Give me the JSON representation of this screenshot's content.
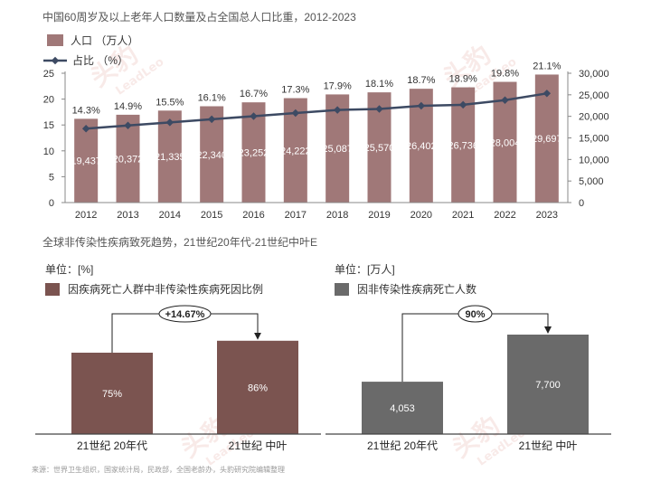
{
  "top_chart": {
    "title": "中国60周岁及以上老年人口数量及占全国总人口比重，2012-2023",
    "legend": {
      "bar_label": "人口 （万人）",
      "line_label": "占比 （%）"
    },
    "colors": {
      "bar": "#a07878",
      "line": "#3d4a63"
    }
  },
  "bottom_section": {
    "title": "全球非传染性疾病致死趋势，21世纪20年代-21世纪中叶E",
    "left": {
      "unit": "单位：[%]",
      "legend": "因疾病死亡人群中非传染性疾病死因比例",
      "growth_label": "+14.67%",
      "color": "#7b5450"
    },
    "right": {
      "unit": "单位：[万人]",
      "legend": "因非传染性疾病死亡人数",
      "growth_label": "90%",
      "color": "#6a6a6a"
    }
  },
  "source": "来源：世界卫生组织，国家统计局，民政部，全国老龄办，头豹研究院编辑整理",
  "watermark": {
    "brand": "头豹",
    "brand_en": "LeadLeo"
  },
  "chart_data": [
    {
      "type": "bar",
      "categories": [
        "2012",
        "2013",
        "2014",
        "2015",
        "2016",
        "2017",
        "2018",
        "2019",
        "2020",
        "2021",
        "2022",
        "2023"
      ],
      "series": [
        {
          "name": "人口 （万人）",
          "type": "bar",
          "axis": "right",
          "values": [
            19437,
            20372,
            21335,
            22340,
            23252,
            24222,
            25087,
            25570,
            26402,
            26736,
            28004,
            29697
          ],
          "labels": [
            "19,437",
            "20,372",
            "21,335",
            "22,340",
            "23,252",
            "24,222",
            "25,087",
            "25,570",
            "26,402",
            "26,736",
            "28,004",
            "29,697"
          ]
        },
        {
          "name": "占比 （%）",
          "type": "line",
          "axis": "left",
          "values": [
            14.3,
            14.9,
            15.5,
            16.1,
            16.7,
            17.3,
            17.9,
            18.1,
            18.7,
            18.9,
            19.8,
            21.1
          ],
          "labels": [
            "14.3%",
            "14.9%",
            "15.5%",
            "16.1%",
            "16.7%",
            "17.3%",
            "17.9%",
            "18.1%",
            "18.7%",
            "18.9%",
            "19.8%",
            "21.1%"
          ]
        }
      ],
      "y_left": {
        "ylim": [
          0,
          25
        ],
        "ticks": [
          "0",
          "5",
          "10",
          "15",
          "20",
          "25"
        ]
      },
      "y_right": {
        "ylim": [
          0,
          30000
        ],
        "ticks": [
          "0",
          "5,000",
          "10,000",
          "15,000",
          "20,000",
          "25,000",
          "30,000"
        ]
      }
    },
    {
      "type": "bar",
      "categories": [
        "21世纪 20年代",
        "21世纪 中叶"
      ],
      "values": [
        75,
        86
      ],
      "labels": [
        "75%",
        "86%"
      ]
    },
    {
      "type": "bar",
      "categories": [
        "21世纪 20年代",
        "21世纪 中叶"
      ],
      "values": [
        4053,
        7700
      ],
      "labels": [
        "4,053",
        "7,700"
      ]
    }
  ]
}
